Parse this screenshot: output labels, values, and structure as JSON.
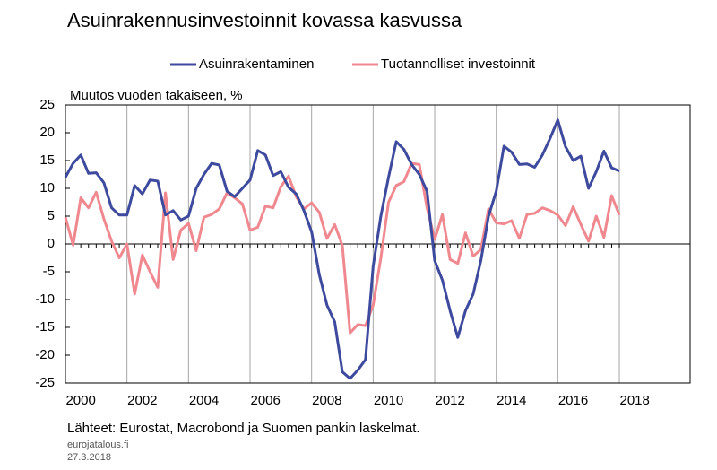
{
  "chart_data": {
    "type": "line",
    "title": "Asuinrakennusinvestoinnit kovassa kasvussa",
    "y_label": "Muutos vuoden takaiseen, %",
    "source": "Lähteet: Eurostat, Macrobond ja Suomen pankin laskelmat.",
    "site": "eurojatalous.fi",
    "date": "27.3.2018",
    "legend": "top",
    "grid": true,
    "x": [
      2000,
      2000.25,
      2000.5,
      2000.75,
      2001,
      2001.25,
      2001.5,
      2001.75,
      2002,
      2002.25,
      2002.5,
      2002.75,
      2003,
      2003.25,
      2003.5,
      2003.75,
      2004,
      2004.25,
      2004.5,
      2004.75,
      2005,
      2005.25,
      2005.5,
      2005.75,
      2006,
      2006.25,
      2006.5,
      2006.75,
      2007,
      2007.25,
      2007.5,
      2007.75,
      2008,
      2008.25,
      2008.5,
      2008.75,
      2009,
      2009.25,
      2009.5,
      2009.75,
      2010,
      2010.25,
      2010.5,
      2010.75,
      2011,
      2011.25,
      2011.5,
      2011.75,
      2012,
      2012.25,
      2012.5,
      2012.75,
      2013,
      2013.25,
      2013.5,
      2013.75,
      2014,
      2014.25,
      2014.5,
      2014.75,
      2015,
      2015.25,
      2015.5,
      2015.75,
      2016,
      2016.25,
      2016.5,
      2016.75,
      2017,
      2017.25,
      2017.5,
      2017.75,
      2018
    ],
    "xlim": [
      2000,
      2020.3
    ],
    "xticks": [
      2000,
      2002,
      2004,
      2006,
      2008,
      2010,
      2012,
      2014,
      2016,
      2018
    ],
    "ylim": [
      -25,
      25
    ],
    "yticks": [
      25,
      20,
      15,
      10,
      5,
      0,
      -5,
      -10,
      -15,
      -20,
      -25
    ],
    "series": [
      {
        "name": "Asuinrakentaminen",
        "color": "#3d4a9e",
        "values": [
          12,
          14.5,
          16,
          12.7,
          12.8,
          11,
          6.5,
          5.2,
          5.2,
          10.5,
          9,
          11.5,
          11.3,
          5.2,
          6,
          4.3,
          5,
          10,
          12.5,
          14.5,
          14.2,
          9.5,
          8.5,
          10,
          11.5,
          16.8,
          16,
          12.3,
          13,
          10.2,
          9,
          6,
          2.2,
          -5.5,
          -11,
          -14,
          -23,
          -24.2,
          -22.7,
          -20.8,
          -4,
          5,
          12,
          18.4,
          17,
          14.3,
          12.5,
          9.5,
          -3,
          -6.5,
          -12,
          -16.8,
          -12,
          -9,
          -3,
          5,
          9.5,
          17.6,
          16.5,
          14.3,
          14.4,
          13.8,
          16,
          19,
          22.3,
          17.5,
          15,
          15.8,
          10,
          13,
          16.7,
          13.7,
          13.1
        ]
      },
      {
        "name": "Tuotannolliset investoinnit",
        "color": "#f0888f",
        "values": [
          4.8,
          -0.2,
          8.3,
          6.5,
          9.3,
          4.5,
          0.5,
          -2.5,
          0,
          -9,
          -2,
          -5,
          -7.8,
          9.2,
          -2.8,
          2.5,
          3.7,
          -1.2,
          4.8,
          5.3,
          6.3,
          9.2,
          8.3,
          7.2,
          2.5,
          3,
          6.8,
          6.5,
          10.3,
          12.2,
          8.5,
          6.3,
          7.4,
          5.7,
          1,
          3.5,
          -0.3,
          -16,
          -14.5,
          -14.7,
          -11,
          -2.5,
          7.5,
          10.5,
          11.2,
          14.5,
          14.3,
          6.5,
          0.8,
          5.3,
          -2.8,
          -3.5,
          2,
          -2.2,
          -1,
          6.3,
          3.8,
          3.6,
          4.2,
          1,
          5.3,
          5.5,
          6.5,
          6,
          5.2,
          3.3,
          6.7,
          3.5,
          0.5,
          5,
          1.2,
          8.7,
          5.2
        ]
      }
    ]
  }
}
